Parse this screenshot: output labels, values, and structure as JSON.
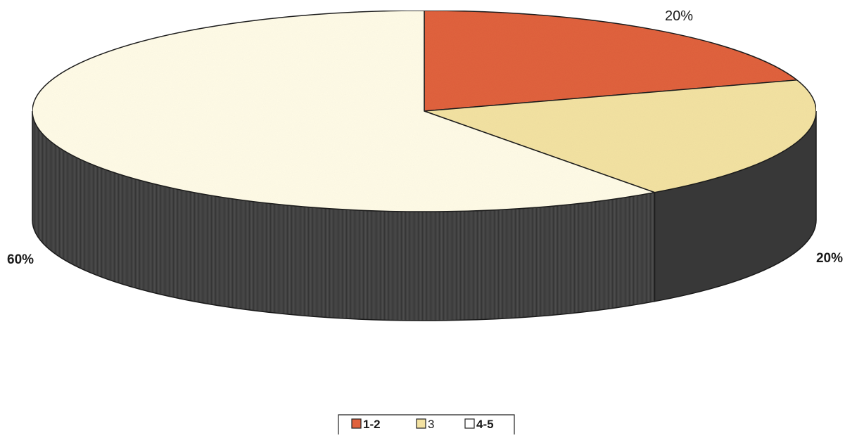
{
  "chart_data": {
    "type": "pie",
    "style": "3d",
    "categories": [
      "1-2",
      "3",
      "4-5"
    ],
    "values": [
      20,
      20,
      60
    ],
    "data_labels": [
      "20%",
      "20%",
      "60%"
    ],
    "colors": [
      "#e0623d",
      "#f3e2a2",
      "#fffbe6"
    ],
    "side_color": "#404040",
    "title": "",
    "legend": {
      "position": "bottom",
      "entries": [
        "1-2",
        "3",
        "4-5"
      ]
    }
  }
}
